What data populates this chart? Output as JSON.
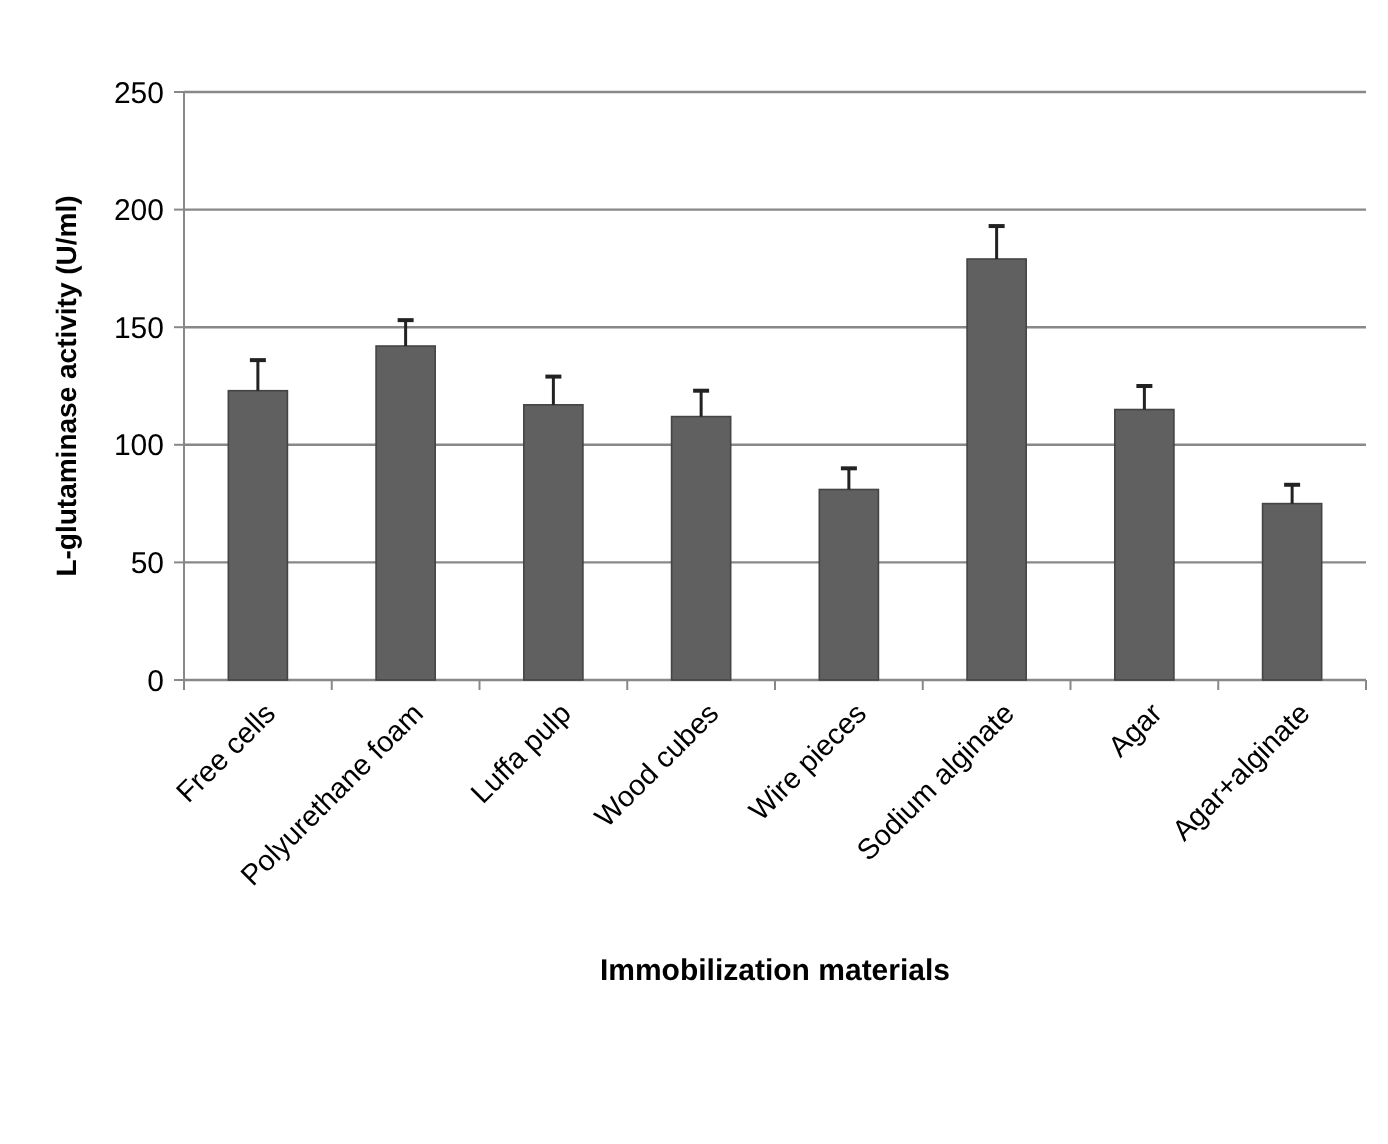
{
  "chart_data": {
    "type": "bar",
    "xlabel": "Immobilization materials",
    "ylabel": "L-glutaminase activity (U/ml)",
    "categories": [
      "Free cells",
      "Polyurethane foam",
      "Luffa pulp",
      "Wood cubes",
      "Wire pieces",
      "Sodium alginate",
      "Agar",
      "Agar+alginate"
    ],
    "values": [
      123,
      142,
      117,
      112,
      81,
      179,
      115,
      75
    ],
    "errors": [
      [
        123,
        136
      ],
      [
        142,
        153
      ],
      [
        117,
        129
      ],
      [
        112,
        123
      ],
      [
        81,
        90
      ],
      [
        179,
        193
      ],
      [
        115,
        125
      ],
      [
        75,
        83
      ]
    ],
    "color": "#606060",
    "ylim": [
      0,
      250
    ],
    "yticks": [
      0,
      50,
      100,
      150,
      200,
      250
    ],
    "grid": "y"
  }
}
